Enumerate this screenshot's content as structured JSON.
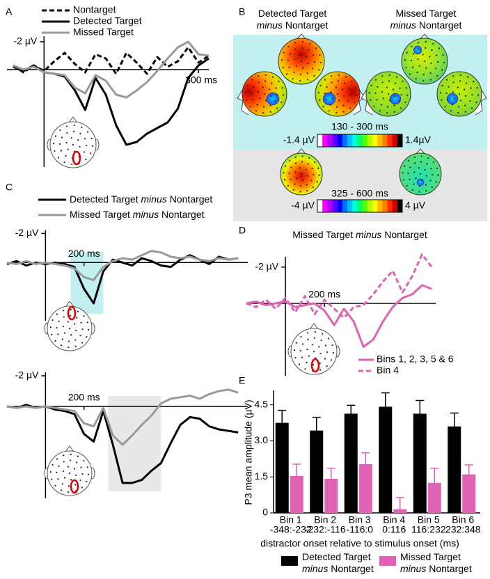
{
  "panel_labels": [
    "A",
    "B",
    "C",
    "D",
    "E"
  ],
  "topomaps": {
    "headings": [
      "Detected Target minus Nontarget",
      "Missed Target minus Nontarget"
    ],
    "windows": [
      "130 - 300 ms",
      "325 - 600 ms"
    ],
    "scale_labels": [
      [
        "-1.4 µV",
        "1.4µV"
      ],
      [
        "-4 µV",
        "4 µV"
      ]
    ]
  },
  "chart_data": [
    {
      "type": "line",
      "y_inverted": true,
      "x": [
        -60,
        -40,
        -20,
        0,
        20,
        40,
        60,
        80,
        100,
        120,
        140,
        160,
        180,
        200,
        220,
        240,
        260,
        280,
        300,
        320
      ],
      "xlim": [
        -72,
        320
      ],
      "ylim": [
        -2.7,
        7
      ],
      "xticks": [
        {
          "value": 300,
          "label": "300 ms"
        }
      ],
      "yticks": [
        {
          "value": -2,
          "label": "-2 µV"
        }
      ],
      "series": [
        {
          "name": "Nontarget",
          "color": "#000000",
          "dashed": true,
          "values": [
            -0.3,
            0.2,
            -0.3,
            0.1,
            -0.6,
            -1.2,
            -0.4,
            0.2,
            -1.1,
            -0.8,
            0.3,
            -1.2,
            -0.5,
            0.3,
            -0.9,
            -0.2,
            -0.6,
            -1.6,
            -0.5,
            -1.0
          ]
        },
        {
          "name": "Detected Target",
          "color": "#000000",
          "values": [
            -0.2,
            0.1,
            -0.3,
            0.2,
            0.3,
            0.5,
            1.5,
            2.9,
            0.6,
            1.8,
            4.0,
            5.4,
            5.2,
            4.6,
            4.2,
            3.8,
            2.8,
            0.6,
            -0.3,
            -0.8
          ]
        },
        {
          "name": "Missed Target",
          "color": "#999999",
          "values": [
            -0.3,
            0,
            -0.2,
            0.2,
            0.3,
            0.4,
            1.3,
            1.7,
            0.4,
            0.8,
            1.8,
            2.0,
            1.5,
            0.9,
            0.1,
            -0.8,
            -1.6,
            -2.0,
            -1.1,
            -1.0
          ]
        }
      ]
    },
    {
      "type": "line",
      "y_inverted": true,
      "x": [
        -200,
        -150,
        -100,
        -50,
        0,
        50,
        100,
        150,
        200,
        250,
        300,
        350,
        400,
        450,
        500,
        550,
        600,
        650,
        700,
        750,
        800,
        850,
        900,
        950,
        1000
      ],
      "xlim": [
        -200,
        1050
      ],
      "ylim": [
        -2.5,
        4
      ],
      "xticks": [
        {
          "value": 200,
          "label": "200 ms"
        }
      ],
      "yticks": [
        {
          "value": -2,
          "label": "-2 µV"
        }
      ],
      "shade": [
        130,
        300
      ],
      "shade_color": "#c2f0f0",
      "series": [
        {
          "name": "Detected Target minus Nontarget",
          "color": "#000000",
          "values": [
            0.1,
            -0.1,
            0.2,
            0,
            0.1,
            0,
            0.1,
            0.3,
            1.8,
            2.8,
            0.6,
            -0.2,
            0,
            0.2,
            -0.3,
            -0.1,
            0.2,
            0.3,
            -0.2,
            -0.5,
            -0.2,
            0.1,
            -0.4,
            -0.2,
            -0.3
          ]
        },
        {
          "name": "Missed Target minus Nontarget",
          "color": "#999999",
          "values": [
            0,
            0.1,
            -0.1,
            0.1,
            0,
            0.1,
            0.2,
            0.4,
            1.0,
            1.2,
            0.3,
            -0.1,
            -0.3,
            -0.2,
            -0.5,
            -0.8,
            -0.7,
            -0.4,
            -0.3,
            -0.4,
            -0.2,
            -0.1,
            -0.3,
            -0.2,
            -0.3
          ]
        }
      ]
    },
    {
      "type": "line",
      "y_inverted": true,
      "x": [
        -200,
        -150,
        -100,
        -50,
        0,
        50,
        100,
        150,
        200,
        250,
        300,
        350,
        400,
        450,
        500,
        550,
        600,
        650,
        700,
        750,
        800,
        850,
        900,
        950,
        1000
      ],
      "xlim": [
        -200,
        1050
      ],
      "ylim": [
        -2.5,
        6
      ],
      "xticks": [
        {
          "value": 200,
          "label": "200 ms"
        }
      ],
      "yticks": [
        {
          "value": -2,
          "label": "-2 µV"
        }
      ],
      "shade": [
        325,
        600
      ],
      "shade_color": "#e8e8e8",
      "series": [
        {
          "color": "#000000",
          "values": [
            0,
            0.1,
            -0.1,
            0.1,
            0,
            0.2,
            0.3,
            0.5,
            1.8,
            2.3,
            0.3,
            2.5,
            5.0,
            5.0,
            4.8,
            4.2,
            3.7,
            2.4,
            1.2,
            0.7,
            0.8,
            1.3,
            1.5,
            1.6,
            1.7
          ]
        },
        {
          "color": "#999999",
          "values": [
            0,
            0.1,
            0,
            0.1,
            0,
            0.1,
            0.2,
            0.3,
            1.1,
            1.3,
            0.1,
            1.9,
            2.5,
            1.9,
            1.2,
            0.6,
            -0.2,
            -0.5,
            -0.6,
            -0.7,
            -0.5,
            -0.8,
            -1.0,
            -1.1,
            -0.9
          ]
        }
      ]
    },
    {
      "type": "line",
      "y_inverted": true,
      "title": "Missed Target minus Nontarget",
      "x": [
        -200,
        -150,
        -100,
        -50,
        0,
        50,
        100,
        150,
        200,
        250,
        300,
        350,
        400,
        450,
        500,
        550,
        600,
        650,
        700,
        750
      ],
      "xlim": [
        -200,
        770
      ],
      "ylim": [
        -2.8,
        4
      ],
      "xticks": [
        {
          "value": 200,
          "label": "200 ms"
        }
      ],
      "yticks": [
        {
          "value": -2,
          "label": "-2 µV"
        }
      ],
      "series": [
        {
          "name": "Bins 1, 2, 3, 5 & 6",
          "color": "#e062b4",
          "values": [
            0,
            -0.1,
            0.1,
            0,
            -0.1,
            0.2,
            0.1,
            0,
            0.4,
            1.2,
            0.3,
            1.0,
            2.4,
            2.0,
            1.0,
            0.2,
            -0.3,
            -0.5,
            -1.0,
            -0.8
          ]
        },
        {
          "name": "Bin 4",
          "color": "#e062b4",
          "dashed": true,
          "values": [
            0,
            0.2,
            -0.2,
            0.3,
            -0.3,
            0.5,
            -0.4,
            0.6,
            -0.2,
            0.3,
            0.8,
            0.2,
            0.1,
            -0.5,
            -1.2,
            -1.8,
            -0.6,
            -1.5,
            -2.7,
            -2.0
          ]
        }
      ]
    },
    {
      "type": "bar",
      "ylabel": "P3 mean amplitude (µV)",
      "xlabel": "distractor onset relative to stimulus onset (ms)",
      "categories": [
        [
          "Bin 1",
          "-348:-232"
        ],
        [
          "Bin 2",
          "-232:-116"
        ],
        [
          "Bin 3",
          "-116:0"
        ],
        [
          "Bin 4",
          "0:116"
        ],
        [
          "Bin 5",
          "116:232"
        ],
        [
          "Bin 6",
          "232:348"
        ]
      ],
      "series": [
        {
          "name": "Detected Target minus Nontarget",
          "color": "#000000",
          "values": [
            3.75,
            3.43,
            4.13,
            4.42,
            4.13,
            3.6
          ],
          "errors": [
            0.52,
            0.55,
            0.35,
            0.58,
            0.55,
            0.56
          ]
        },
        {
          "name": "Missed Target minus Nontarget",
          "color": "#e062b4",
          "values": [
            1.54,
            1.42,
            2.03,
            0.15,
            1.25,
            1.6
          ],
          "errors": [
            0.49,
            0.44,
            0.47,
            0.49,
            0.61,
            0.4
          ]
        }
      ],
      "ylim": [
        0,
        5.1
      ],
      "yticks": [
        0,
        1.5,
        {
          "value": 3,
          "label": "3.0"
        },
        4.5
      ]
    }
  ]
}
